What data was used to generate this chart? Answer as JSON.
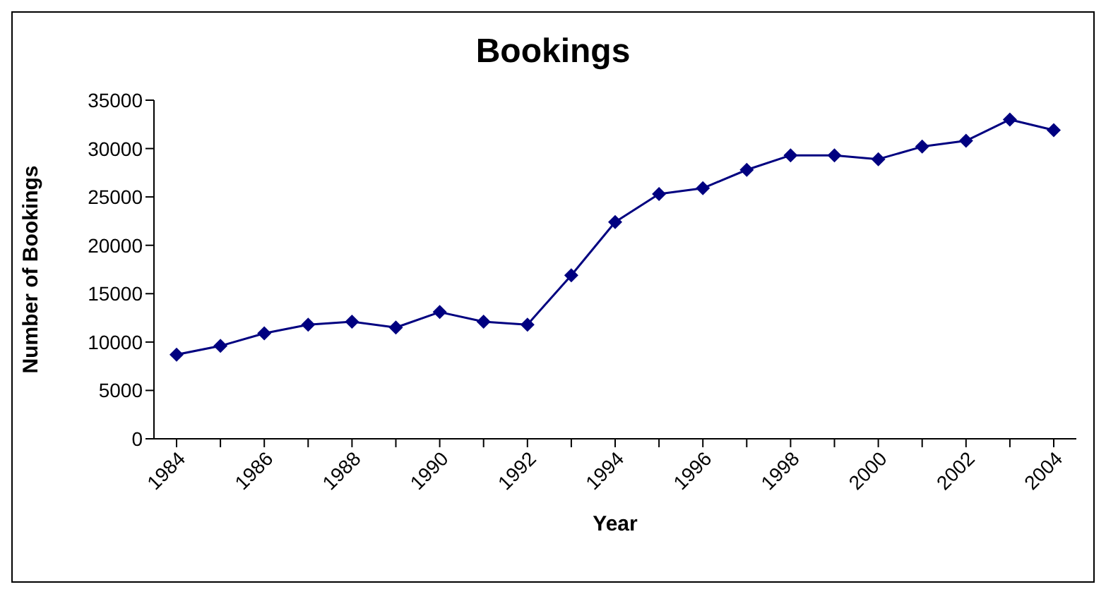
{
  "chart_data": {
    "type": "line",
    "title": "Bookings",
    "xlabel": "Year",
    "ylabel": "Number of Bookings",
    "categories": [
      "1984",
      null,
      "1986",
      null,
      "1988",
      null,
      "1990",
      null,
      "1992",
      null,
      "1994",
      null,
      "1996",
      null,
      "1998",
      null,
      "2000",
      null,
      "2002",
      null,
      "2004"
    ],
    "series": [
      {
        "color": "#000080",
        "values": [
          8700,
          9600,
          10900,
          11800,
          12100,
          11500,
          13100,
          12100,
          11800,
          16900,
          22400,
          25300,
          25900,
          27800,
          29300,
          29300,
          28900,
          30200,
          30800,
          33000,
          31900
        ]
      }
    ],
    "ylim": [
      0,
      35000
    ],
    "yticks": [
      0,
      5000,
      10000,
      15000,
      20000,
      25000,
      30000,
      35000
    ],
    "grid": false,
    "legend": false,
    "marker": "diamond",
    "line_style": "solid"
  }
}
